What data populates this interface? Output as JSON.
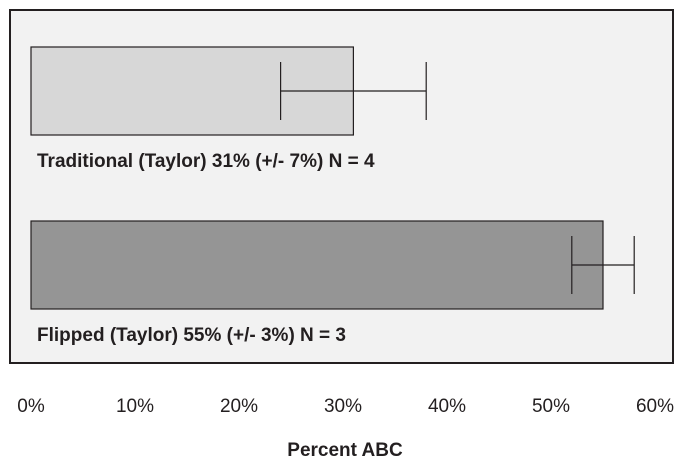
{
  "chart_data": {
    "type": "bar",
    "orientation": "horizontal",
    "title": "",
    "xlabel": "Percent ABC",
    "ylabel": "",
    "xlim": [
      0,
      60
    ],
    "x_ticks": [
      0,
      10,
      20,
      30,
      40,
      50,
      60
    ],
    "x_tick_labels": [
      "0%",
      "10%",
      "20%",
      "30%",
      "40%",
      "50%",
      "60%"
    ],
    "grid": false,
    "legend": "none",
    "categories": [
      "Traditional (Taylor)",
      "Flipped (Taylor)"
    ],
    "values": [
      31,
      55
    ],
    "errors": [
      7,
      3
    ],
    "n": [
      4,
      3
    ],
    "bar_labels": [
      "Traditional (Taylor)  31% (+/- 7%) N = 4",
      "Flipped (Taylor)  55% (+/- 3%) N = 3"
    ],
    "colors": {
      "bars": [
        "#d7d7d7",
        "#959595"
      ],
      "panel_background": "#f2f2f2",
      "outline": "#231f20"
    }
  }
}
